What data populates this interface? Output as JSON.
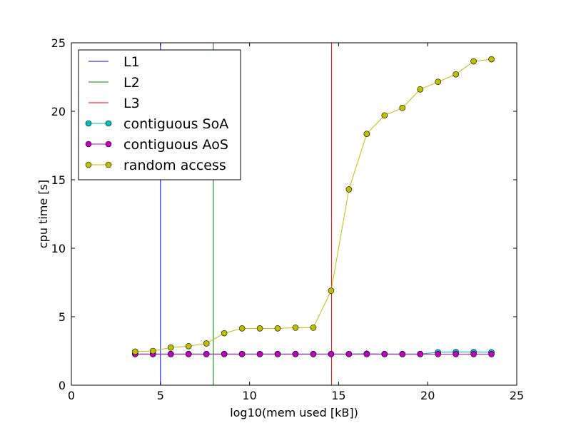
{
  "chart_data": {
    "type": "line",
    "xlabel": "log10(mem used [kB])",
    "ylabel": "cpu time [s]",
    "xlim": [
      0,
      25
    ],
    "ylim": [
      0,
      25
    ],
    "xticks": [
      0,
      5,
      10,
      15,
      20,
      25
    ],
    "yticks": [
      0,
      5,
      10,
      15,
      20,
      25
    ],
    "grid": false,
    "legend_position": "top-left",
    "vlines": [
      {
        "name": "L1",
        "x": 5.0,
        "color": "#0000ff"
      },
      {
        "name": "L2",
        "x": 7.97,
        "color": "#008000"
      },
      {
        "name": "L3",
        "x": 14.6,
        "color": "#ff0000"
      }
    ],
    "x": [
      3.58,
      4.58,
      5.58,
      6.58,
      7.58,
      8.58,
      9.58,
      10.58,
      11.58,
      12.58,
      13.58,
      14.58,
      15.58,
      16.58,
      17.58,
      18.58,
      19.58,
      20.58,
      21.58,
      22.58,
      23.58
    ],
    "series": [
      {
        "name": "contiguous SoA",
        "color": "#00bfbf",
        "values": [
          2.28,
          2.28,
          2.28,
          2.28,
          2.28,
          2.28,
          2.28,
          2.28,
          2.28,
          2.28,
          2.28,
          2.28,
          2.28,
          2.3,
          2.28,
          2.28,
          2.28,
          2.4,
          2.42,
          2.42,
          2.4
        ]
      },
      {
        "name": "contiguous AoS",
        "color": "#bf00bf",
        "values": [
          2.27,
          2.27,
          2.27,
          2.27,
          2.27,
          2.27,
          2.27,
          2.27,
          2.27,
          2.27,
          2.27,
          2.27,
          2.27,
          2.27,
          2.27,
          2.27,
          2.27,
          2.27,
          2.27,
          2.27,
          2.27
        ]
      },
      {
        "name": "random access",
        "color": "#bfbf00",
        "values": [
          2.45,
          2.5,
          2.75,
          2.85,
          3.05,
          3.8,
          4.15,
          4.15,
          4.15,
          4.2,
          4.2,
          6.9,
          14.3,
          18.35,
          19.7,
          20.25,
          21.6,
          22.15,
          22.7,
          23.65,
          23.8
        ]
      }
    ]
  }
}
